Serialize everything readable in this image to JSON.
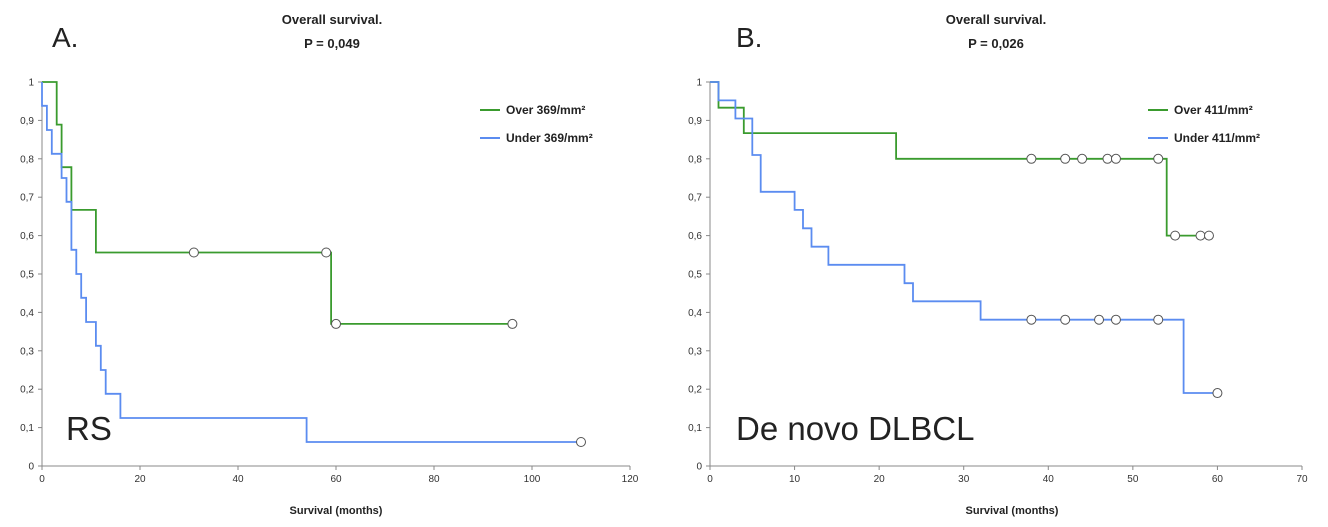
{
  "chart_data": [
    {
      "type": "line",
      "panel_label": "A.",
      "title": "Overall survival.",
      "subtitle": "P = 0,049",
      "annotation": "RS",
      "xlabel": "Survival (months)",
      "ylabel": "",
      "xlim": [
        0,
        120
      ],
      "ylim": [
        0,
        1
      ],
      "xticks": [
        0,
        20,
        40,
        60,
        80,
        100,
        120
      ],
      "yticks": [
        0,
        0.1,
        0.2,
        0.3,
        0.4,
        0.5,
        0.6,
        0.7,
        0.8,
        0.9,
        1
      ],
      "ytick_labels": [
        "0",
        "0,1",
        "0,2",
        "0,3",
        "0,4",
        "0,5",
        "0,6",
        "0,7",
        "0,8",
        "0,9",
        "1"
      ],
      "legend_position": "top-right",
      "series": [
        {
          "name": "Over 369/mm²",
          "color": "#3a9b2e",
          "steps": [
            [
              0,
              1
            ],
            [
              3,
              1
            ],
            [
              3,
              0.889
            ],
            [
              4,
              0.889
            ],
            [
              4,
              0.778
            ],
            [
              6,
              0.778
            ],
            [
              6,
              0.667
            ],
            [
              11,
              0.667
            ],
            [
              11,
              0.556
            ],
            [
              59,
              0.556
            ],
            [
              59,
              0.37
            ],
            [
              96,
              0.37
            ]
          ],
          "censored": [
            [
              31,
              0.556
            ],
            [
              58,
              0.556
            ],
            [
              60,
              0.37
            ],
            [
              96,
              0.37
            ]
          ]
        },
        {
          "name": "Under 369/mm²",
          "color": "#5b8cf0",
          "steps": [
            [
              0,
              1
            ],
            [
              0,
              0.938
            ],
            [
              1,
              0.938
            ],
            [
              1,
              0.875
            ],
            [
              2,
              0.875
            ],
            [
              2,
              0.813
            ],
            [
              4,
              0.813
            ],
            [
              4,
              0.75
            ],
            [
              5,
              0.75
            ],
            [
              5,
              0.688
            ],
            [
              6,
              0.688
            ],
            [
              6,
              0.563
            ],
            [
              7,
              0.563
            ],
            [
              7,
              0.5
            ],
            [
              8,
              0.5
            ],
            [
              8,
              0.438
            ],
            [
              9,
              0.438
            ],
            [
              9,
              0.375
            ],
            [
              11,
              0.375
            ],
            [
              11,
              0.313
            ],
            [
              12,
              0.313
            ],
            [
              12,
              0.25
            ],
            [
              13,
              0.25
            ],
            [
              13,
              0.188
            ],
            [
              16,
              0.188
            ],
            [
              16,
              0.125
            ],
            [
              54,
              0.125
            ],
            [
              54,
              0.0625
            ],
            [
              110,
              0.0625
            ]
          ],
          "censored": [
            [
              110,
              0.0625
            ]
          ]
        }
      ]
    },
    {
      "type": "line",
      "panel_label": "B.",
      "title": "Overall survival.",
      "subtitle": "P = 0,026",
      "annotation": "De novo DLBCL",
      "xlabel": "Survival (months)",
      "ylabel": "",
      "xlim": [
        0,
        70
      ],
      "ylim": [
        0,
        1
      ],
      "xticks": [
        0,
        10,
        20,
        30,
        40,
        50,
        60,
        70
      ],
      "yticks": [
        0,
        0.1,
        0.2,
        0.3,
        0.4,
        0.5,
        0.6,
        0.7,
        0.8,
        0.9,
        1
      ],
      "ytick_labels": [
        "0",
        "0,1",
        "0,2",
        "0,3",
        "0,4",
        "0,5",
        "0,6",
        "0,7",
        "0,8",
        "0,9",
        "1"
      ],
      "legend_position": "top-right",
      "series": [
        {
          "name": "Over 411/mm²",
          "color": "#3a9b2e",
          "steps": [
            [
              0,
              1
            ],
            [
              1,
              1
            ],
            [
              1,
              0.933
            ],
            [
              4,
              0.933
            ],
            [
              4,
              0.867
            ],
            [
              22,
              0.867
            ],
            [
              22,
              0.8
            ],
            [
              54,
              0.8
            ],
            [
              54,
              0.6
            ],
            [
              59,
              0.6
            ]
          ],
          "censored": [
            [
              38,
              0.8
            ],
            [
              42,
              0.8
            ],
            [
              44,
              0.8
            ],
            [
              47,
              0.8
            ],
            [
              48,
              0.8
            ],
            [
              53,
              0.8
            ],
            [
              55,
              0.6
            ],
            [
              58,
              0.6
            ],
            [
              59,
              0.6
            ]
          ]
        },
        {
          "name": "Under 411/mm²",
          "color": "#5b8cf0",
          "steps": [
            [
              0,
              1
            ],
            [
              1,
              1
            ],
            [
              1,
              0.952
            ],
            [
              3,
              0.952
            ],
            [
              3,
              0.905
            ],
            [
              5,
              0.905
            ],
            [
              5,
              0.81
            ],
            [
              6,
              0.81
            ],
            [
              6,
              0.714
            ],
            [
              10,
              0.714
            ],
            [
              10,
              0.667
            ],
            [
              11,
              0.667
            ],
            [
              11,
              0.619
            ],
            [
              12,
              0.619
            ],
            [
              12,
              0.571
            ],
            [
              14,
              0.571
            ],
            [
              14,
              0.524
            ],
            [
              23,
              0.524
            ],
            [
              23,
              0.476
            ],
            [
              24,
              0.476
            ],
            [
              24,
              0.429
            ],
            [
              32,
              0.429
            ],
            [
              32,
              0.381
            ],
            [
              56,
              0.381
            ],
            [
              56,
              0.19
            ],
            [
              60,
              0.19
            ]
          ],
          "censored": [
            [
              38,
              0.381
            ],
            [
              42,
              0.381
            ],
            [
              46,
              0.381
            ],
            [
              48,
              0.381
            ],
            [
              53,
              0.381
            ],
            [
              60,
              0.19
            ]
          ]
        }
      ]
    }
  ]
}
